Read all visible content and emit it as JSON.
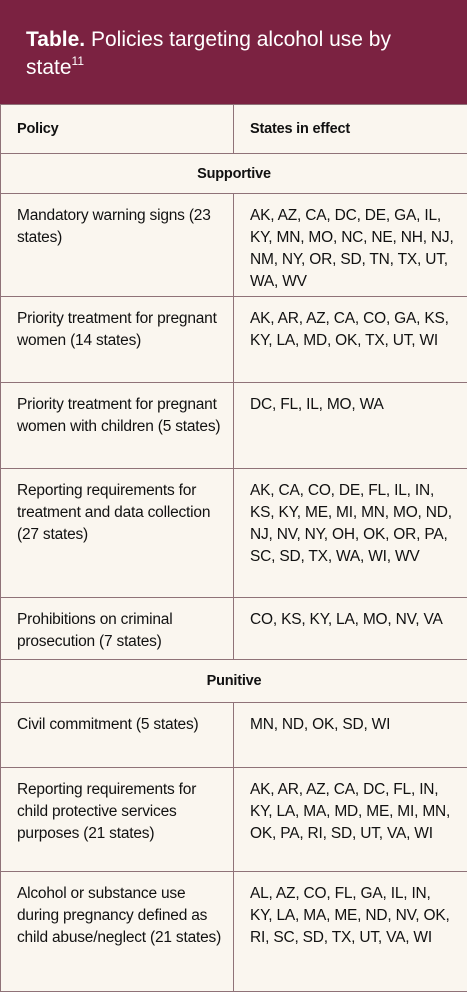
{
  "header": {
    "label": "Table.",
    "title": "Policies targeting alcohol use by state",
    "footnote": "11"
  },
  "table": {
    "columns": [
      "Policy",
      "States in effect"
    ],
    "rows": [
      {
        "section": "Supportive"
      },
      {
        "policy": "Mandatory warning signs (23 states)",
        "states": "AK, AZ, CA, DC, DE, GA, IL, KY, MN, MO, NC, NE, NH, NJ, NM, NY, OR, SD, TN, TX, UT, WA, WV"
      },
      {
        "policy": "Priority treatment for pregnant women (14 states)",
        "states": "AK, AR, AZ, CA, CO, GA, KS, KY, LA, MD, OK, TX, UT, WI"
      },
      {
        "policy": "Priority treatment for pregnant women with children (5 states)",
        "states": "DC, FL, IL, MO, WA"
      },
      {
        "policy": "Reporting requirements for treatment and data collection (27 states)",
        "states": "AK, CA, CO, DE, FL, IL, IN, KS, KY, ME, MI, MN, MO, ND, NJ, NV, NY, OH, OK, OR, PA, SC, SD, TX, WA, WI, WV"
      },
      {
        "policy": "Prohibitions on criminal prosecution (7 states)",
        "states": "CO, KS, KY, LA, MO, NV, VA"
      },
      {
        "section": "Punitive"
      },
      {
        "policy": "Civil commitment (5 states)",
        "states": "MN, ND, OK, SD, WI"
      },
      {
        "policy": "Reporting requirements for child protective services purposes (21 states)",
        "states": "AK, AR, AZ, CA, DC, FL, IN, KY, LA, MA, MD, ME, MI, MN, OK, PA, RI, SD, UT, VA, WI"
      },
      {
        "policy": "Alcohol or substance use during pregnancy defined as child abuse/neglect (21 states)",
        "states": "AL, AZ, CO, FL, GA, IL, IN, KY, LA, MA, ME, ND, NV, OK, RI, SC, SD, TX, UT, VA, WI"
      }
    ]
  }
}
